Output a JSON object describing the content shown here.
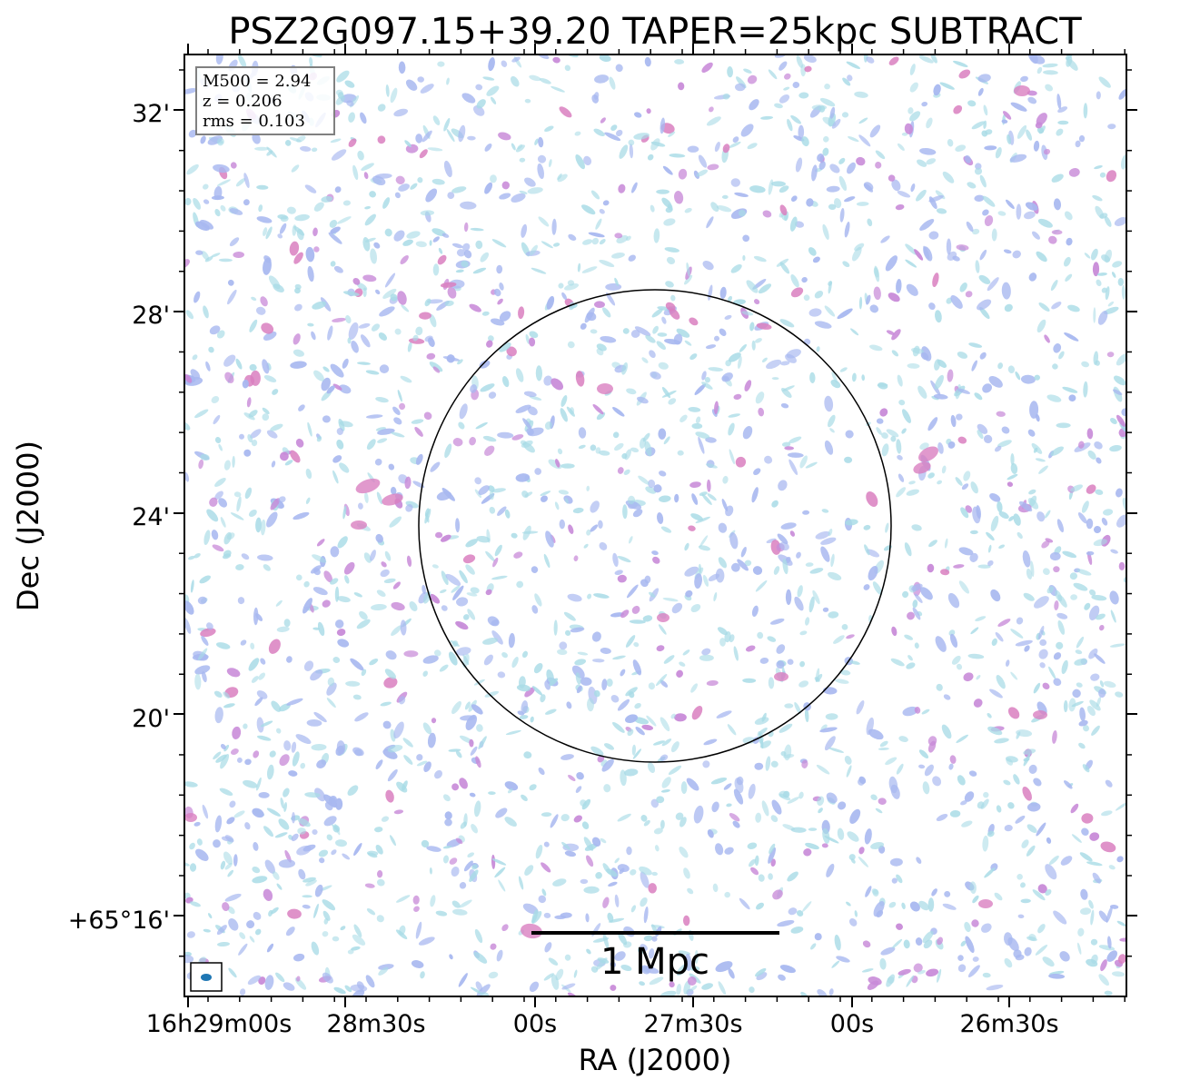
{
  "title": "PSZ2G097.15+39.20 TAPER=25kpc SUBTRACT",
  "x_axis": {
    "label": "RA (J2000)",
    "ticks": [
      "16h29m00s",
      "28m30s",
      "00s",
      "27m30s",
      "00s",
      "26m30s"
    ]
  },
  "y_axis": {
    "label": "Dec (J2000)",
    "ticks": [
      "32'",
      "28'",
      "24'",
      "20'",
      "+65°16'"
    ]
  },
  "info_box": {
    "m500": "M500 = 2.94",
    "z": "z = 0.206",
    "rms": "rms = 0.103"
  },
  "scale_bar": {
    "label": "1 Mpc"
  },
  "colors": {
    "noise_light": "#a8dbe6",
    "noise_mid": "#a8b8f0",
    "noise_strong": "#c88ad8",
    "noise_peak": "#d97fc0",
    "beam": "#1f77b4",
    "frame": "#000000",
    "info_border": "#808080"
  },
  "overlays": {
    "circle": "R500 aperture (black outline)",
    "beam": "restoring beam ellipse (blue)"
  }
}
